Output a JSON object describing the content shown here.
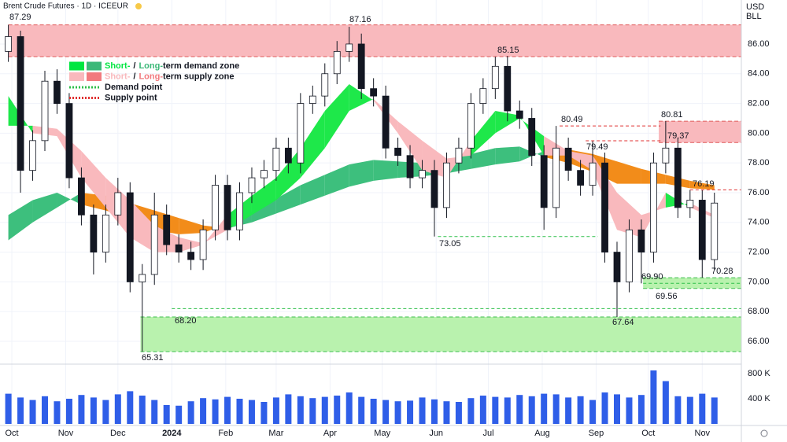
{
  "chart_data": {
    "type": "candlestick",
    "title": "Brent Crude Futures · 1D · ICEEUR",
    "currency": "USD",
    "unit": "BLL",
    "xlim": [
      -6.8,
      419.5
    ],
    "xticks": [
      {
        "value": 0,
        "label": "Oct"
      },
      {
        "value": 31,
        "label": "Nov"
      },
      {
        "value": 61,
        "label": "Dec"
      },
      {
        "value": 92,
        "label": "2024"
      },
      {
        "value": 123,
        "label": "Feb"
      },
      {
        "value": 152,
        "label": "Mar"
      },
      {
        "value": 183,
        "label": "Apr"
      },
      {
        "value": 213,
        "label": "May"
      },
      {
        "value": 244,
        "label": "Jun"
      },
      {
        "value": 274,
        "label": "Jul"
      },
      {
        "value": 305,
        "label": "Aug"
      },
      {
        "value": 336,
        "label": "Sep"
      },
      {
        "value": 366,
        "label": "Oct"
      },
      {
        "value": 397,
        "label": "Nov"
      }
    ],
    "ylim": [
      64.52,
      88.96
    ],
    "yticks": [
      {
        "value": 66,
        "label": "66.00"
      },
      {
        "value": 68,
        "label": "68.00"
      },
      {
        "value": 70,
        "label": "70.00"
      },
      {
        "value": 72,
        "label": "72.00"
      },
      {
        "value": 74,
        "label": "74.00"
      },
      {
        "value": 76,
        "label": "76.00"
      },
      {
        "value": 78,
        "label": "78.00"
      },
      {
        "value": 80,
        "label": "80.00"
      },
      {
        "value": 82,
        "label": "82.00"
      },
      {
        "value": 84,
        "label": "84.00"
      },
      {
        "value": 86,
        "label": "86.00"
      }
    ],
    "grid": true,
    "up_color": "#ffffff",
    "down_color": "#131722",
    "candles": {
      "x": [
        -2,
        5,
        12,
        19,
        26,
        33,
        40,
        47,
        54,
        61,
        68,
        75,
        82,
        89,
        96,
        103,
        110,
        117,
        124,
        131,
        138,
        145,
        152,
        159,
        166,
        173,
        180,
        187,
        194,
        201,
        208,
        215,
        222,
        229,
        236,
        243,
        250,
        257,
        264,
        271,
        278,
        285,
        292,
        299,
        306,
        313,
        320,
        327,
        334,
        341,
        348,
        355,
        362,
        369,
        376,
        383,
        390,
        397,
        404
      ],
      "open": [
        85.5,
        86.5,
        77.5,
        79.5,
        83.5,
        82.0,
        77.0,
        74.5,
        72.0,
        74.5,
        76.0,
        70.0,
        70.5,
        74.5,
        72.5,
        72.0,
        71.5,
        73.5,
        76.5,
        73.5,
        76.0,
        77.0,
        77.5,
        79.0,
        78.0,
        82.0,
        82.5,
        84.0,
        85.5,
        86.0,
        83.0,
        82.5,
        79.0,
        78.5,
        77.0,
        77.5,
        75.0,
        78.0,
        79.0,
        82.0,
        83.0,
        84.5,
        81.5,
        81.0,
        78.5,
        75.0,
        79.0,
        77.5,
        76.5,
        78.0,
        72.0,
        70.0,
        73.5,
        72.0,
        78.0,
        79.0,
        75.0,
        75.5,
        71.5
      ],
      "high": [
        87.29,
        86.9,
        80.2,
        84.2,
        84.3,
        82.7,
        77.7,
        75.2,
        75.2,
        77.0,
        76.7,
        71.2,
        76.0,
        75.2,
        73.2,
        72.7,
        74.2,
        77.2,
        77.2,
        76.7,
        77.7,
        78.2,
        79.7,
        79.7,
        82.7,
        83.2,
        84.7,
        86.2,
        87.16,
        86.7,
        83.7,
        83.2,
        79.7,
        79.2,
        78.2,
        78.2,
        78.7,
        79.7,
        82.7,
        83.7,
        85.15,
        85.2,
        82.2,
        81.7,
        79.2,
        80.49,
        79.7,
        78.2,
        79.49,
        78.7,
        72.7,
        74.2,
        74.2,
        78.7,
        80.81,
        79.7,
        76.19,
        76.2,
        76.0
      ],
      "low": [
        84.8,
        76.0,
        76.8,
        78.8,
        81.3,
        76.3,
        73.8,
        70.5,
        71.3,
        73.8,
        69.3,
        65.31,
        69.8,
        71.8,
        71.3,
        70.8,
        70.8,
        72.8,
        72.8,
        72.8,
        75.3,
        76.3,
        76.8,
        77.3,
        77.3,
        81.3,
        81.8,
        83.3,
        84.8,
        82.3,
        81.8,
        78.3,
        77.8,
        76.3,
        76.3,
        73.05,
        74.3,
        77.3,
        78.3,
        81.3,
        82.3,
        80.8,
        80.3,
        77.8,
        73.5,
        74.3,
        76.8,
        75.8,
        75.8,
        71.3,
        67.64,
        69.3,
        69.9,
        71.3,
        77.3,
        74.3,
        74.3,
        70.28,
        70.8
      ],
      "close": [
        86.5,
        77.5,
        79.5,
        83.5,
        82.0,
        77.0,
        74.5,
        72.0,
        74.5,
        76.0,
        70.0,
        70.5,
        74.5,
        72.5,
        72.0,
        71.5,
        73.5,
        76.5,
        73.5,
        76.0,
        77.0,
        77.5,
        79.0,
        78.0,
        82.0,
        82.5,
        84.0,
        85.5,
        86.0,
        83.0,
        82.5,
        79.0,
        78.5,
        77.0,
        77.5,
        75.0,
        78.0,
        79.0,
        82.0,
        83.0,
        84.5,
        81.5,
        81.0,
        78.5,
        75.0,
        79.0,
        77.5,
        76.5,
        78.0,
        72.0,
        70.0,
        73.5,
        72.0,
        78.0,
        79.0,
        75.0,
        75.5,
        71.5,
        75.3
      ]
    },
    "bands": [
      {
        "x": [
          -2,
          12,
          26,
          40,
          54,
          68,
          82,
          96,
          110,
          124,
          138,
          152,
          166,
          180,
          194,
          208,
          222,
          236,
          250,
          264,
          278,
          292,
          306,
          320,
          334,
          348,
          362,
          376,
          390,
          404
        ],
        "fast": [
          74.5,
          75.5,
          76.0,
          75.2,
          74.8,
          74.3,
          73.5,
          73.2,
          73.3,
          73.9,
          74.7,
          75.6,
          76.5,
          77.2,
          77.9,
          78.2,
          78.1,
          78.0,
          78.2,
          78.6,
          79.0,
          79.1,
          78.4,
          78.0,
          77.4,
          76.6,
          76.6,
          76.6,
          76.3,
          76.2
        ],
        "slow": [
          72.8,
          74.0,
          75.0,
          76.0,
          75.8,
          75.3,
          74.8,
          74.3,
          73.8,
          73.6,
          74.0,
          74.6,
          75.2,
          75.8,
          76.4,
          76.8,
          77.0,
          77.1,
          77.3,
          77.6,
          77.9,
          78.1,
          78.8,
          78.9,
          78.6,
          78.1,
          77.6,
          77.2,
          76.8,
          76.5
        ],
        "up_color": "#3dbf7d",
        "down_color": "#f28c1a"
      },
      {
        "x": [
          -2,
          12,
          26,
          40,
          54,
          68,
          82,
          96,
          110,
          124,
          138,
          152,
          166,
          180,
          194,
          208,
          222,
          236,
          250,
          264,
          278,
          292,
          306,
          320,
          334,
          348,
          362,
          376,
          390,
          404
        ],
        "fast": [
          82.5,
          80.0,
          79.8,
          77.0,
          75.0,
          73.0,
          72.0,
          72.0,
          72.5,
          74.5,
          75.8,
          77.0,
          79.0,
          81.5,
          83.3,
          82.2,
          80.0,
          77.5,
          77.0,
          79.5,
          81.5,
          81.2,
          78.5,
          78.5,
          77.5,
          73.5,
          73.0,
          76.0,
          75.0,
          74.3
        ],
        "slow": [
          80.5,
          80.5,
          80.3,
          78.8,
          77.0,
          75.5,
          73.8,
          73.0,
          72.6,
          73.5,
          74.5,
          75.5,
          77.0,
          79.0,
          81.5,
          82.3,
          80.8,
          79.5,
          78.3,
          78.5,
          80.0,
          81.0,
          79.8,
          78.8,
          78.5,
          76.0,
          74.5,
          75.0,
          75.3,
          74.5
        ],
        "up_color": "#1ee84a",
        "down_color": "#f9b9bd"
      }
    ],
    "supply_zones": [
      {
        "low": 85.15,
        "high": 87.29,
        "start": -2
      },
      {
        "low": 79.37,
        "high": 80.81,
        "start": 372
      }
    ],
    "demand_zones": [
      {
        "low": 65.31,
        "high": 67.64,
        "start": 74
      },
      {
        "low": 69.56,
        "high": 70.28,
        "start": 363
      }
    ],
    "supply_zone_color": "#f9b9bd",
    "demand_zone_color": "#b9f2ae",
    "supply_points": {
      "values": [
        80.49,
        79.49,
        76.19
      ],
      "start": [
        315,
        330,
        390
      ],
      "end": [
        373,
        373,
        null
      ],
      "color": "#e03131"
    },
    "demand_points": {
      "values": [
        73.05,
        68.2,
        69.9
      ],
      "value_labels": [
        "73.05",
        "68.20",
        "69.90"
      ],
      "start": [
        245,
        92,
        363
      ],
      "end": [
        337,
        null,
        null
      ],
      "color": "#2fbf4a"
    },
    "legend": [
      {
        "parts": [
          "Short-",
          "/",
          "Long-",
          "term demand zone"
        ],
        "swatches": [
          "#00e640",
          "#3cb878"
        ]
      },
      {
        "parts": [
          "Short-",
          "/",
          "Long-",
          "term supply zone"
        ],
        "swatches": [
          "#f9b9bd",
          "#f27a7e"
        ]
      },
      {
        "parts": [
          "Demand point"
        ],
        "line": "#2fbf4a"
      },
      {
        "parts": [
          "Supply point"
        ],
        "line": "#e03131"
      }
    ],
    "volume": {
      "color": "#2f5ee8",
      "ylim": [
        0,
        925000
      ],
      "yticks": [
        {
          "value": 400000,
          "label": "400 K"
        },
        {
          "value": 800000,
          "label": "800 K"
        }
      ],
      "values": [
        480000,
        420000,
        380000,
        440000,
        360000,
        400000,
        460000,
        420000,
        380000,
        470000,
        520000,
        450000,
        380000,
        300000,
        290000,
        360000,
        410000,
        390000,
        430000,
        400000,
        380000,
        350000,
        420000,
        470000,
        440000,
        410000,
        430000,
        450000,
        500000,
        430000,
        400000,
        380000,
        360000,
        370000,
        420000,
        390000,
        360000,
        350000,
        410000,
        450000,
        430000,
        420000,
        460000,
        440000,
        480000,
        470000,
        420000,
        440000,
        380000,
        500000,
        470000,
        420000,
        460000,
        850000,
        680000,
        440000,
        430000,
        480000,
        420000
      ]
    }
  }
}
